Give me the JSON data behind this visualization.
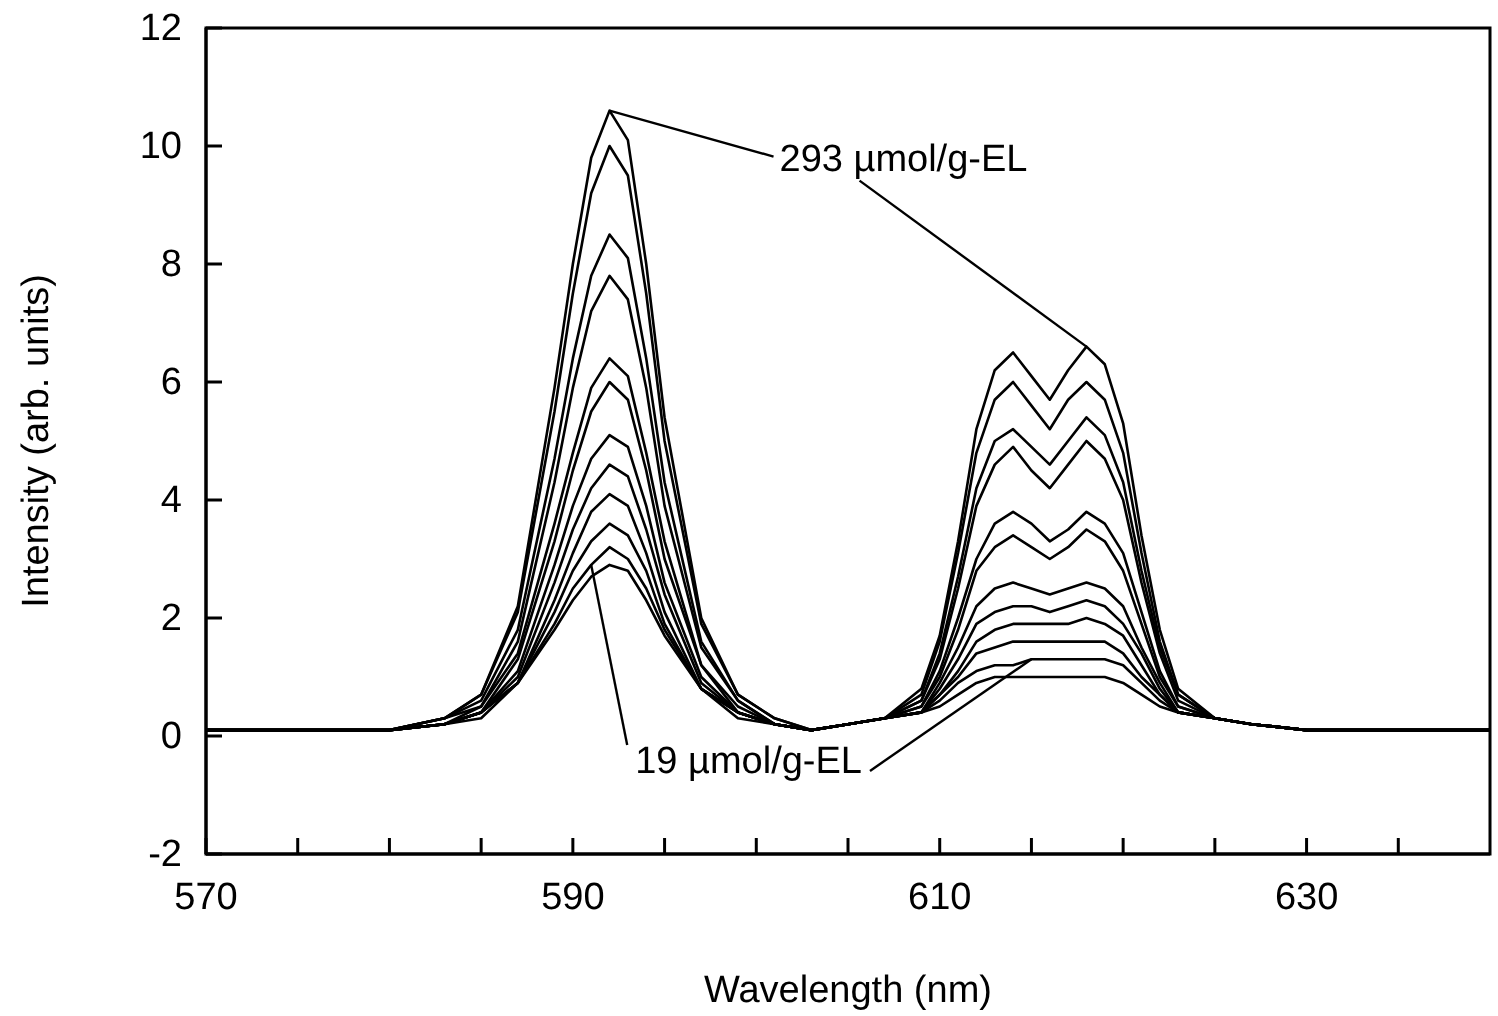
{
  "chart_data": {
    "type": "line",
    "xlabel": "Wavelength (nm)",
    "ylabel": "Intensity (arb. units)",
    "xlim": [
      570,
      640
    ],
    "xticks": [
      570,
      {
        "value": 575,
        "label": null
      },
      {
        "value": 580,
        "label": null
      },
      {
        "value": 585,
        "label": null
      },
      590,
      {
        "value": 595,
        "label": null
      },
      {
        "value": 600,
        "label": null
      },
      {
        "value": 605,
        "label": null
      },
      610,
      {
        "value": 615,
        "label": null
      },
      {
        "value": 620,
        "label": null
      },
      {
        "value": 625,
        "label": null
      },
      630,
      {
        "value": 635,
        "label": null
      }
    ],
    "ylim": [
      -2,
      12
    ],
    "yticks": [
      -2,
      0,
      2,
      4,
      6,
      8,
      10,
      12
    ],
    "marker": "none",
    "line_style": "solid",
    "x": [
      570,
      575,
      580,
      583,
      585,
      587,
      589,
      590,
      591,
      592,
      593,
      594,
      595,
      597,
      599,
      601,
      603,
      605,
      607,
      609,
      610,
      611,
      612,
      613,
      614,
      615,
      616,
      617,
      618,
      619,
      620,
      621,
      622,
      623,
      625,
      627,
      630,
      635,
      640
    ],
    "series": [
      {
        "color": "#000000",
        "values": [
          0.1,
          0.1,
          0.1,
          0.3,
          0.7,
          2.2,
          5.9,
          8.0,
          9.8,
          10.6,
          10.1,
          8.0,
          5.4,
          2.0,
          0.7,
          0.3,
          0.1,
          0.2,
          0.3,
          0.8,
          1.7,
          3.3,
          5.2,
          6.2,
          6.5,
          6.1,
          5.7,
          6.2,
          6.6,
          6.3,
          5.3,
          3.4,
          1.8,
          0.8,
          0.3,
          0.2,
          0.1,
          0.1,
          0.1
        ]
      },
      {
        "color": "#000000",
        "values": [
          0.1,
          0.1,
          0.1,
          0.3,
          0.7,
          2.1,
          5.5,
          7.5,
          9.2,
          10.0,
          9.5,
          7.5,
          5.0,
          1.9,
          0.7,
          0.3,
          0.1,
          0.2,
          0.3,
          0.7,
          1.6,
          3.1,
          4.8,
          5.7,
          6.0,
          5.6,
          5.2,
          5.7,
          6.0,
          5.7,
          4.8,
          3.1,
          1.6,
          0.7,
          0.3,
          0.2,
          0.1,
          0.1,
          0.1
        ]
      },
      {
        "color": "#000000",
        "values": [
          0.1,
          0.1,
          0.1,
          0.3,
          0.6,
          1.8,
          4.7,
          6.4,
          7.8,
          8.5,
          8.1,
          6.4,
          4.3,
          1.6,
          0.6,
          0.2,
          0.1,
          0.2,
          0.3,
          0.6,
          1.4,
          2.7,
          4.2,
          5.0,
          5.2,
          4.9,
          4.6,
          5.0,
          5.4,
          5.1,
          4.3,
          2.8,
          1.5,
          0.7,
          0.3,
          0.2,
          0.1,
          0.1,
          0.1
        ]
      },
      {
        "color": "#000000",
        "values": [
          0.1,
          0.1,
          0.1,
          0.3,
          0.5,
          1.6,
          4.3,
          5.9,
          7.2,
          7.8,
          7.4,
          5.9,
          3.9,
          1.5,
          0.6,
          0.2,
          0.1,
          0.2,
          0.3,
          0.6,
          1.3,
          2.5,
          3.9,
          4.6,
          4.9,
          4.5,
          4.2,
          4.6,
          5.0,
          4.7,
          4.0,
          2.6,
          1.4,
          0.6,
          0.3,
          0.2,
          0.1,
          0.1,
          0.1
        ]
      },
      {
        "color": "#000000",
        "values": [
          0.1,
          0.1,
          0.1,
          0.2,
          0.5,
          1.4,
          3.6,
          4.8,
          5.9,
          6.4,
          6.1,
          4.8,
          3.3,
          1.2,
          0.5,
          0.2,
          0.1,
          0.2,
          0.3,
          0.5,
          1.1,
          2.0,
          3.0,
          3.6,
          3.8,
          3.6,
          3.3,
          3.5,
          3.8,
          3.6,
          3.1,
          2.1,
          1.1,
          0.5,
          0.3,
          0.2,
          0.1,
          0.1,
          0.1
        ]
      },
      {
        "color": "#000000",
        "values": [
          0.1,
          0.1,
          0.1,
          0.2,
          0.4,
          1.3,
          3.3,
          4.5,
          5.5,
          6.0,
          5.7,
          4.5,
          3.0,
          1.2,
          0.4,
          0.2,
          0.1,
          0.2,
          0.3,
          0.5,
          1.0,
          1.8,
          2.8,
          3.2,
          3.4,
          3.2,
          3.0,
          3.2,
          3.5,
          3.3,
          2.8,
          1.9,
          1.0,
          0.5,
          0.3,
          0.2,
          0.1,
          0.1,
          0.1
        ]
      },
      {
        "color": "#000000",
        "values": [
          0.1,
          0.1,
          0.1,
          0.2,
          0.4,
          1.1,
          2.9,
          3.9,
          4.7,
          5.1,
          4.9,
          3.9,
          2.6,
          1.0,
          0.4,
          0.2,
          0.1,
          0.2,
          0.3,
          0.4,
          0.9,
          1.5,
          2.2,
          2.5,
          2.6,
          2.5,
          2.4,
          2.5,
          2.6,
          2.5,
          2.2,
          1.5,
          0.9,
          0.4,
          0.3,
          0.2,
          0.1,
          0.1,
          0.1
        ]
      },
      {
        "color": "#000000",
        "values": [
          0.1,
          0.1,
          0.1,
          0.2,
          0.4,
          1.0,
          2.6,
          3.5,
          4.2,
          4.6,
          4.4,
          3.5,
          2.4,
          0.9,
          0.4,
          0.2,
          0.1,
          0.2,
          0.3,
          0.4,
          0.8,
          1.3,
          1.9,
          2.1,
          2.2,
          2.2,
          2.1,
          2.2,
          2.3,
          2.2,
          1.9,
          1.4,
          0.8,
          0.4,
          0.3,
          0.2,
          0.1,
          0.1,
          0.1
        ]
      },
      {
        "color": "#000000",
        "values": [
          0.1,
          0.1,
          0.1,
          0.2,
          0.3,
          0.9,
          2.3,
          3.1,
          3.8,
          4.1,
          3.9,
          3.1,
          2.1,
          0.8,
          0.3,
          0.2,
          0.1,
          0.2,
          0.3,
          0.4,
          0.7,
          1.1,
          1.6,
          1.8,
          1.9,
          1.9,
          1.9,
          1.9,
          2.0,
          1.9,
          1.7,
          1.2,
          0.7,
          0.4,
          0.3,
          0.2,
          0.1,
          0.1,
          0.1
        ]
      },
      {
        "color": "#000000",
        "values": [
          0.1,
          0.1,
          0.1,
          0.2,
          0.4,
          0.9,
          2.1,
          2.8,
          3.3,
          3.6,
          3.4,
          2.8,
          1.9,
          0.8,
          0.4,
          0.2,
          0.1,
          0.2,
          0.3,
          0.4,
          0.7,
          1.0,
          1.4,
          1.5,
          1.6,
          1.6,
          1.6,
          1.6,
          1.6,
          1.6,
          1.4,
          1.0,
          0.7,
          0.4,
          0.3,
          0.2,
          0.1,
          0.1,
          0.1
        ]
      },
      {
        "color": "#000000",
        "values": [
          0.1,
          0.1,
          0.1,
          0.2,
          0.4,
          0.9,
          1.9,
          2.5,
          2.9,
          3.2,
          3.0,
          2.5,
          1.8,
          0.8,
          0.4,
          0.2,
          0.1,
          0.2,
          0.3,
          0.4,
          0.6,
          0.9,
          1.1,
          1.2,
          1.2,
          1.3,
          1.3,
          1.3,
          1.3,
          1.3,
          1.2,
          0.9,
          0.6,
          0.4,
          0.3,
          0.2,
          0.1,
          0.1,
          0.1
        ]
      },
      {
        "color": "#000000",
        "values": [
          0.1,
          0.1,
          0.1,
          0.2,
          0.4,
          0.9,
          1.8,
          2.3,
          2.7,
          2.9,
          2.8,
          2.3,
          1.7,
          0.8,
          0.4,
          0.2,
          0.1,
          0.2,
          0.3,
          0.4,
          0.5,
          0.7,
          0.9,
          1.0,
          1.0,
          1.0,
          1.0,
          1.0,
          1.0,
          1.0,
          0.9,
          0.7,
          0.5,
          0.4,
          0.3,
          0.2,
          0.1,
          0.1,
          0.1
        ]
      }
    ],
    "annotations": [
      {
        "text": "293 µmol/g-EL",
        "x": 592,
        "y": 10.6
      },
      {
        "text": "19 µmol/g-EL",
        "x": 591,
        "y": 2.9
      }
    ]
  }
}
